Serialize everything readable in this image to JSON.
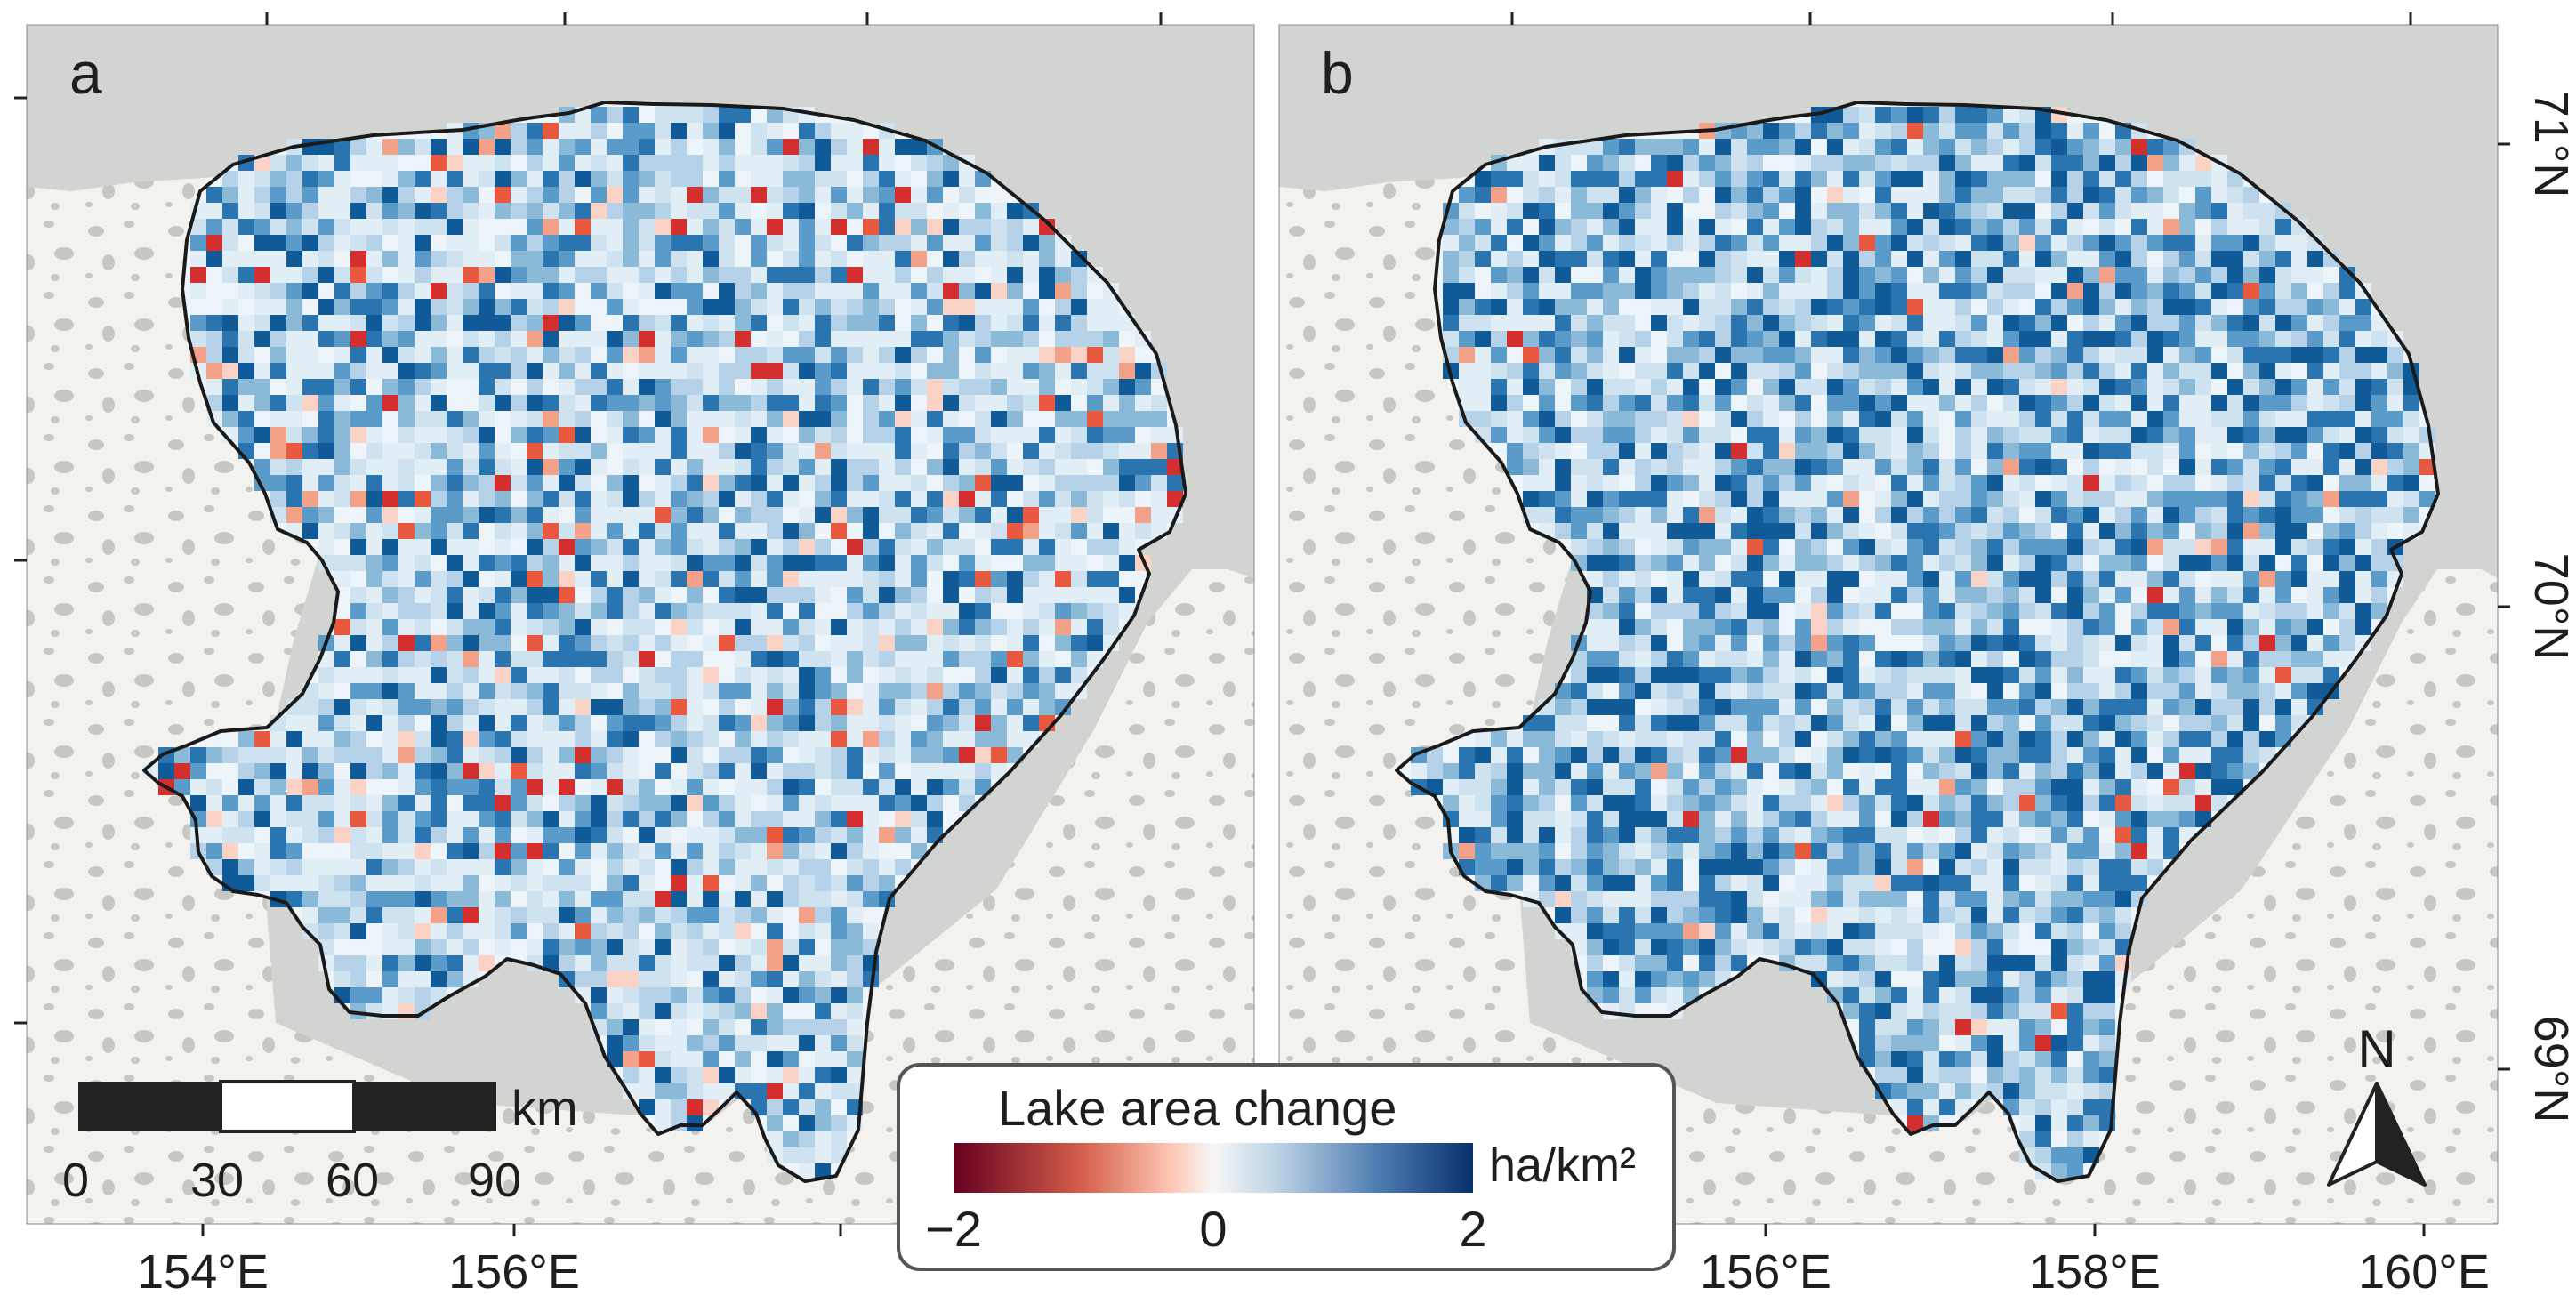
{
  "panels": [
    {
      "label": "a",
      "lon_ticks": [
        "154°E",
        "156°E"
      ]
    },
    {
      "label": "b",
      "lon_ticks": [
        "156°E",
        "158°E",
        "160°E"
      ]
    }
  ],
  "lat_ticks": [
    "71°N",
    "70°N",
    "69°N"
  ],
  "scale_bar": {
    "unit": "km",
    "ticks": [
      "0",
      "30",
      "60",
      "90"
    ]
  },
  "north_arrow": {
    "label": "N"
  },
  "legend": {
    "title": "Lake area change",
    "unit": "ha/km²",
    "min_label": "−2",
    "mid_label": "0",
    "max_label": "2",
    "range": [
      -2,
      2
    ],
    "colors": [
      "#67001f",
      "#d6604d",
      "#f7f7f7",
      "#4d7bb0",
      "#08306b"
    ]
  },
  "colors": {
    "sea": "#d2d4d1",
    "land": "#f3f2ee",
    "land_lakes": "#c7c8c4",
    "outline": "#1a1a1a"
  }
}
